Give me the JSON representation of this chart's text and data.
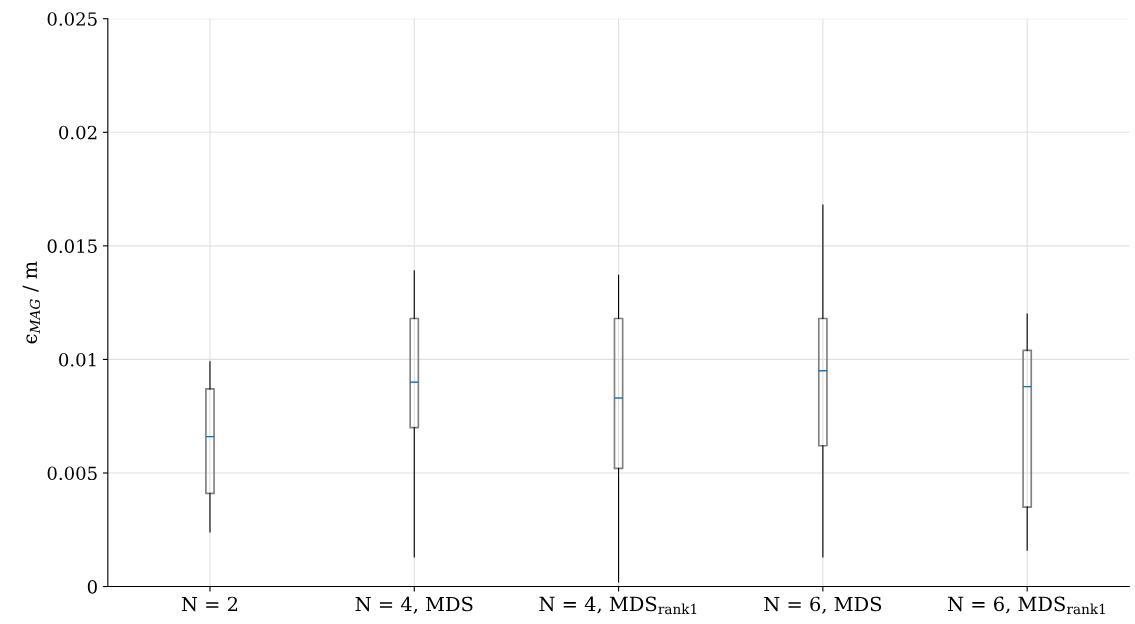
{
  "chart_data": {
    "type": "box",
    "categories": [
      "N = 2",
      "N = 4, MDS",
      "N = 4, MDS$_{rank1}$",
      "N = 6, MDS",
      "N = 6, MDS$_{rank1}$"
    ],
    "ylabel": "ϵ$_{MAG}$ / m",
    "boxes": [
      {
        "low": 0.0024,
        "q1": 0.0041,
        "median": 0.0066,
        "q3": 0.0087,
        "high": 0.0099
      },
      {
        "low": 0.0013,
        "q1": 0.007,
        "median": 0.009,
        "q3": 0.0118,
        "high": 0.0139
      },
      {
        "low": 0.0002,
        "q1": 0.0052,
        "median": 0.0083,
        "q3": 0.0118,
        "high": 0.0137
      },
      {
        "low": 0.0013,
        "q1": 0.0062,
        "median": 0.0095,
        "q3": 0.0118,
        "high": 0.0168
      },
      {
        "low": 0.0016,
        "q1": 0.0035,
        "median": 0.0088,
        "q3": 0.0104,
        "high": 0.012
      }
    ],
    "ylim": [
      0,
      0.025
    ],
    "yticks": [
      0,
      0.005,
      0.01,
      0.015,
      0.02,
      0.025
    ],
    "grid": true
  }
}
